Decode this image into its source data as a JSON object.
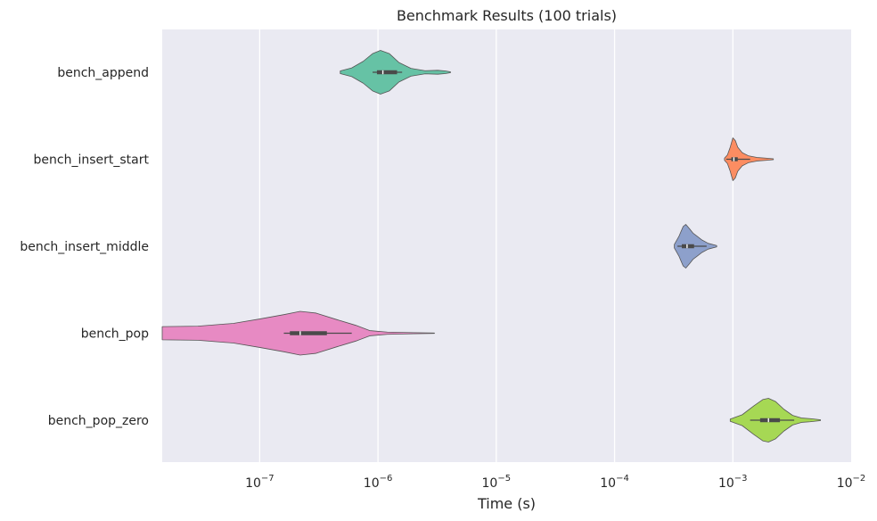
{
  "chart_data": {
    "type": "violin",
    "title": "Benchmark Results (100 trials)",
    "xlabel": "Time (s)",
    "ylabel": "",
    "x_scale": "log",
    "xlim": [
      1.5e-08,
      0.01
    ],
    "x_ticks": [
      {
        "value": 1e-07,
        "base": "10",
        "exp": "−7"
      },
      {
        "value": 1e-06,
        "base": "10",
        "exp": "−6"
      },
      {
        "value": 1e-05,
        "base": "10",
        "exp": "−5"
      },
      {
        "value": 0.0001,
        "base": "10",
        "exp": "−4"
      },
      {
        "value": 0.001,
        "base": "10",
        "exp": "−3"
      },
      {
        "value": 0.01,
        "base": "10",
        "exp": "−2"
      }
    ],
    "grid": true,
    "categories": [
      "bench_append",
      "bench_insert_start",
      "bench_insert_middle",
      "bench_pop",
      "bench_pop_zero"
    ],
    "series": [
      {
        "category": "bench_append",
        "color": "#66c2a5",
        "range": [
          4.8e-07,
          4.1e-06
        ],
        "whiskers": [
          9e-07,
          1.6e-06
        ],
        "q1": 9.8e-07,
        "median": 1.1e-06,
        "q3": 1.45e-06,
        "density": [
          [
            4.8e-07,
            0.06
          ],
          [
            6e-07,
            0.2
          ],
          [
            7.5e-07,
            0.5
          ],
          [
            9e-07,
            0.85
          ],
          [
            1.05e-06,
            1.0
          ],
          [
            1.25e-06,
            0.85
          ],
          [
            1.5e-06,
            0.45
          ],
          [
            1.9e-06,
            0.18
          ],
          [
            2.5e-06,
            0.07
          ],
          [
            3.2e-06,
            0.09
          ],
          [
            3.7e-06,
            0.06
          ],
          [
            4.1e-06,
            0.02
          ]
        ]
      },
      {
        "category": "bench_insert_start",
        "color": "#fc8d62",
        "range": [
          0.00085,
          0.0022
        ],
        "whiskers": [
          0.00088,
          0.0014
        ],
        "q1": 0.00097,
        "median": 0.00102,
        "q3": 0.0011,
        "density": [
          [
            0.00085,
            0.05
          ],
          [
            0.0009,
            0.2
          ],
          [
            0.00095,
            0.55
          ],
          [
            0.001,
            0.98
          ],
          [
            0.00105,
            0.85
          ],
          [
            0.0011,
            0.55
          ],
          [
            0.0012,
            0.3
          ],
          [
            0.00135,
            0.16
          ],
          [
            0.0016,
            0.08
          ],
          [
            0.0019,
            0.05
          ],
          [
            0.0022,
            0.02
          ]
        ]
      },
      {
        "category": "bench_insert_middle",
        "color": "#8da0cb",
        "range": [
          0.00032,
          0.00073
        ],
        "whiskers": [
          0.00034,
          0.0006
        ],
        "q1": 0.00037,
        "median": 0.00041,
        "q3": 0.00047,
        "density": [
          [
            0.00032,
            0.08
          ],
          [
            0.00035,
            0.45
          ],
          [
            0.00038,
            0.9
          ],
          [
            0.0004,
            1.0
          ],
          [
            0.00043,
            0.8
          ],
          [
            0.00046,
            0.6
          ],
          [
            0.0005,
            0.45
          ],
          [
            0.00055,
            0.28
          ],
          [
            0.00062,
            0.13
          ],
          [
            0.00073,
            0.03
          ]
        ]
      },
      {
        "category": "bench_pop",
        "color": "#e78ac3",
        "range": [
          1.5e-08,
          3e-06
        ],
        "whiskers": [
          1.6e-07,
          6e-07
        ],
        "q1": 1.8e-07,
        "median": 2.2e-07,
        "q3": 3.7e-07,
        "density": [
          [
            1.5e-08,
            0.3
          ],
          [
            3e-08,
            0.32
          ],
          [
            6e-08,
            0.45
          ],
          [
            1e-07,
            0.65
          ],
          [
            1.6e-07,
            0.85
          ],
          [
            2.2e-07,
            1.0
          ],
          [
            3e-07,
            0.92
          ],
          [
            4.5e-07,
            0.62
          ],
          [
            6.5e-07,
            0.36
          ],
          [
            8.5e-07,
            0.12
          ],
          [
            1.2e-06,
            0.05
          ],
          [
            2e-06,
            0.025
          ],
          [
            3e-06,
            0.01
          ]
        ]
      },
      {
        "category": "bench_pop_zero",
        "color": "#a6d854",
        "range": [
          0.00095,
          0.0055
        ],
        "whiskers": [
          0.0014,
          0.0033
        ],
        "q1": 0.0017,
        "median": 0.002,
        "q3": 0.0025,
        "density": [
          [
            0.00095,
            0.05
          ],
          [
            0.0012,
            0.25
          ],
          [
            0.0015,
            0.65
          ],
          [
            0.0018,
            0.95
          ],
          [
            0.002,
            1.0
          ],
          [
            0.0023,
            0.85
          ],
          [
            0.0027,
            0.5
          ],
          [
            0.0032,
            0.22
          ],
          [
            0.0038,
            0.1
          ],
          [
            0.0045,
            0.07
          ],
          [
            0.0055,
            0.02
          ]
        ]
      }
    ]
  }
}
